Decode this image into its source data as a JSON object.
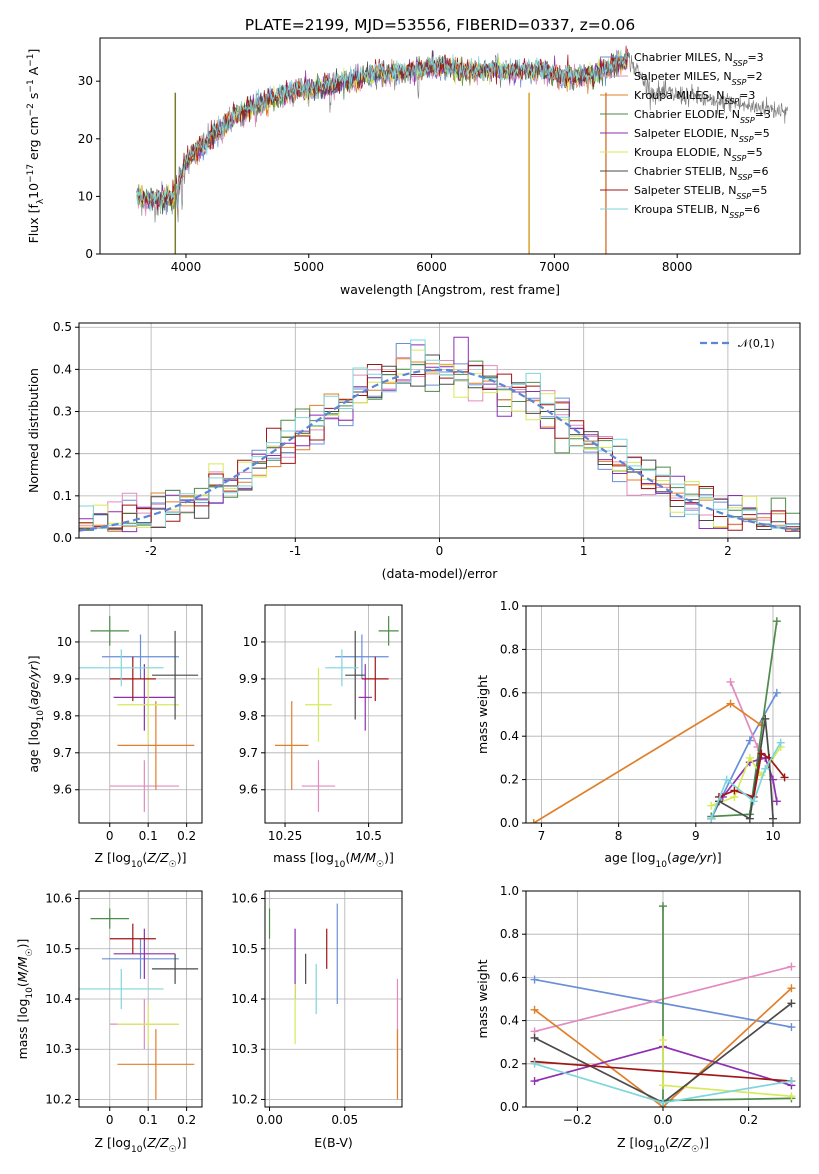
{
  "figure_title": "PLATE=2199, MJD=53556, FIBERID=0337, z=0.06",
  "colors": {
    "chabrier_miles": "#6a8fd8",
    "salpeter_miles": "#e38ac0",
    "kroupa_miles": "#e07f2a",
    "chabrier_elodie": "#4e8a4a",
    "salpeter_elodie": "#8e2fb0",
    "kroupa_elodie": "#d7ea5a",
    "chabrier_stelib": "#4a4a4a",
    "salpeter_stelib": "#a01515",
    "kroupa_stelib": "#7ed6dc"
  },
  "chart_data": [
    {
      "id": "spectrum",
      "type": "line",
      "title": "PLATE=2199, MJD=53556, FIBERID=0337, z=0.06",
      "xlabel": "wavelength [Angstrom, rest frame]",
      "ylabel": "Flux [f_λ 10^-17 erg cm^-2 s^-1 A^-1]",
      "xlim": [
        3300,
        9000
      ],
      "ylim": [
        0,
        37.5
      ],
      "xticks": [
        4000,
        5000,
        6000,
        7000,
        8000
      ],
      "yticks": [
        0,
        10,
        20,
        30
      ],
      "grid": false,
      "legend_position": "right",
      "series": [
        {
          "name": "Chabrier MILES, N_SSP=3",
          "legend_text": "Chabrier MILES, N",
          "legend_sub": "SSP",
          "legend_tail": "=3",
          "color": "#6a8fd8"
        },
        {
          "name": "Salpeter MILES, N_SSP=2",
          "legend_text": "Salpeter MILES, N",
          "legend_sub": "SSP",
          "legend_tail": "=2",
          "color": "#e38ac0"
        },
        {
          "name": "Kroupa MILES, N_SSP=3",
          "legend_text": "Kroupa MILES, N",
          "legend_sub": "SSP",
          "legend_tail": "=3",
          "color": "#e07f2a"
        },
        {
          "name": "Chabrier ELODIE, N_SSP=3",
          "legend_text": "Chabrier ELODIE, N",
          "legend_sub": "SSP",
          "legend_tail": "=3",
          "color": "#4e8a4a"
        },
        {
          "name": "Salpeter ELODIE, N_SSP=5",
          "legend_text": "Salpeter ELODIE, N",
          "legend_sub": "SSP",
          "legend_tail": "=5",
          "color": "#8e2fb0"
        },
        {
          "name": "Kroupa ELODIE, N_SSP=5",
          "legend_text": "Kroupa ELODIE, N",
          "legend_sub": "SSP",
          "legend_tail": "=5",
          "color": "#d7ea5a"
        },
        {
          "name": "Chabrier STELIB, N_SSP=6",
          "legend_text": "Chabrier STELIB, N",
          "legend_sub": "SSP",
          "legend_tail": "=6",
          "color": "#4a4a4a"
        },
        {
          "name": "Salpeter STELIB, N_SSP=5",
          "legend_text": "Salpeter STELIB, N",
          "legend_sub": "SSP",
          "legend_tail": "=5",
          "color": "#a01515"
        },
        {
          "name": "Kroupa STELIB, N_SSP=6",
          "legend_text": "Kroupa STELIB, N",
          "legend_sub": "SSP",
          "legend_tail": "=6",
          "color": "#7ed6dc"
        }
      ],
      "continuum": {
        "x": [
          3600,
          3700,
          3800,
          3900,
          4000,
          4100,
          4200,
          4300,
          4400,
          4500,
          4700,
          4900,
          5100,
          5300,
          5500,
          5700,
          5900,
          6100,
          6300,
          6500,
          6700,
          6900,
          7100,
          7300,
          7500,
          7600
        ],
        "y": [
          10,
          9.5,
          9.5,
          10,
          16,
          18,
          20,
          22,
          24,
          25,
          27,
          28.5,
          29,
          30,
          31,
          31.5,
          32,
          32.5,
          31.5,
          32,
          31.5,
          32,
          30.5,
          31,
          33,
          34
        ]
      },
      "observed_extension": {
        "x": [
          7600,
          7700,
          7800,
          7900,
          8000,
          8100,
          8200,
          8300,
          8400,
          8500,
          8600,
          8700,
          8800,
          8900
        ],
        "y": [
          34,
          31,
          28,
          28,
          27.5,
          27.5,
          27,
          26,
          26.5,
          26,
          25.5,
          25.5,
          25,
          25.3
        ]
      }
    },
    {
      "id": "residuals",
      "type": "line",
      "xlabel": "(data-model)/error",
      "ylabel": "Normed distribution",
      "xlim": [
        -2.5,
        2.5
      ],
      "ylim": [
        0,
        0.51
      ],
      "xticks": [
        -2,
        -1,
        0,
        1,
        2
      ],
      "yticks": [
        0.0,
        0.1,
        0.2,
        0.3,
        0.4,
        0.5
      ],
      "grid": true,
      "legend_position": "upper right",
      "reference": {
        "name": "𝒩(0,1)",
        "mean": 0,
        "sigma": 1,
        "color": "#5b86d6"
      },
      "histogram": {
        "bins_from": -2.5,
        "bins_to": 2.5,
        "bin_width": 0.1,
        "model_count": 9
      }
    },
    {
      "id": "age_vs_Z",
      "type": "scatter",
      "xlabel": "Z [log10(Z/Z☉)]",
      "ylabel": "age [log10(age/yr)]",
      "xlim": [
        -0.08,
        0.24
      ],
      "ylim": [
        9.51,
        10.1
      ],
      "xticks": [
        0.0,
        0.1,
        0.2
      ],
      "yticks": [
        9.6,
        9.7,
        9.8,
        9.9,
        10.0
      ],
      "grid": true,
      "points": [
        {
          "model": "Chabrier MILES",
          "x": 0.08,
          "xerr": 0.1,
          "y": 9.96,
          "yerr": 0.06
        },
        {
          "model": "Salpeter MILES",
          "x": 0.09,
          "xerr": 0.09,
          "y": 9.61,
          "yerr": 0.07
        },
        {
          "model": "Kroupa MILES",
          "x": 0.12,
          "xerr": 0.1,
          "y": 9.72,
          "yerr": 0.12
        },
        {
          "model": "Chabrier ELODIE",
          "x": 0.0,
          "xerr": 0.05,
          "y": 10.03,
          "yerr": 0.04
        },
        {
          "model": "Salpeter ELODIE",
          "x": 0.09,
          "xerr": 0.08,
          "y": 9.85,
          "yerr": 0.09
        },
        {
          "model": "Kroupa ELODIE",
          "x": 0.1,
          "xerr": 0.08,
          "y": 9.83,
          "yerr": 0.1
        },
        {
          "model": "Chabrier STELIB",
          "x": 0.17,
          "xerr": 0.06,
          "y": 9.91,
          "yerr": 0.12
        },
        {
          "model": "Salpeter STELIB",
          "x": 0.06,
          "xerr": 0.06,
          "y": 9.9,
          "yerr": 0.06
        },
        {
          "model": "Kroupa STELIB",
          "x": 0.03,
          "xerr": 0.11,
          "y": 9.93,
          "yerr": 0.05
        }
      ]
    },
    {
      "id": "age_vs_mass",
      "type": "scatter",
      "xlabel": "mass [log10(M/M☉)]",
      "xlim": [
        10.19,
        10.6
      ],
      "ylim": [
        9.51,
        10.1
      ],
      "xticks": [
        10.25,
        10.5
      ],
      "yticks": [
        9.6,
        9.7,
        9.8,
        9.9,
        10.0
      ],
      "grid": true,
      "points": [
        {
          "model": "Chabrier MILES",
          "x": 10.48,
          "xerr": 0.08,
          "y": 9.96,
          "yerr": 0.06
        },
        {
          "model": "Salpeter MILES",
          "x": 10.35,
          "xerr": 0.05,
          "y": 9.61,
          "yerr": 0.07
        },
        {
          "model": "Kroupa MILES",
          "x": 10.27,
          "xerr": 0.05,
          "y": 9.72,
          "yerr": 0.12
        },
        {
          "model": "Chabrier ELODIE",
          "x": 10.56,
          "xerr": 0.03,
          "y": 10.03,
          "yerr": 0.04
        },
        {
          "model": "Salpeter ELODIE",
          "x": 10.49,
          "xerr": 0.02,
          "y": 9.85,
          "yerr": 0.09
        },
        {
          "model": "Kroupa ELODIE",
          "x": 10.35,
          "xerr": 0.04,
          "y": 9.83,
          "yerr": 0.1
        },
        {
          "model": "Chabrier STELIB",
          "x": 10.46,
          "xerr": 0.03,
          "y": 9.91,
          "yerr": 0.12
        },
        {
          "model": "Salpeter STELIB",
          "x": 10.52,
          "xerr": 0.04,
          "y": 9.9,
          "yerr": 0.06
        },
        {
          "model": "Kroupa STELIB",
          "x": 10.42,
          "xerr": 0.05,
          "y": 9.93,
          "yerr": 0.05
        }
      ]
    },
    {
      "id": "weight_vs_age",
      "type": "line",
      "xlabel": "age [log10(age/yr)]",
      "ylabel": "mass weight",
      "xlim": [
        6.8,
        10.35
      ],
      "ylim": [
        0,
        1.0
      ],
      "xticks": [
        7,
        8,
        9,
        10
      ],
      "yticks": [
        0.0,
        0.2,
        0.4,
        0.6,
        0.8,
        1.0
      ],
      "grid": true,
      "series": [
        {
          "model": "Chabrier MILES",
          "x": [
            9.2,
            9.7,
            10.05
          ],
          "y": [
            0.02,
            0.38,
            0.6
          ]
        },
        {
          "model": "Salpeter MILES",
          "x": [
            9.45,
            9.8
          ],
          "y": [
            0.65,
            0.35
          ]
        },
        {
          "model": "Kroupa MILES",
          "x": [
            6.9,
            9.45,
            9.85
          ],
          "y": [
            0.0,
            0.55,
            0.45
          ]
        },
        {
          "model": "Chabrier ELODIE",
          "x": [
            9.2,
            9.7,
            10.05
          ],
          "y": [
            0.03,
            0.04,
            0.93
          ]
        },
        {
          "model": "Salpeter ELODIE",
          "x": [
            9.35,
            9.7,
            9.9,
            10.0,
            10.05
          ],
          "y": [
            0.12,
            0.28,
            0.3,
            0.2,
            0.1
          ]
        },
        {
          "model": "Kroupa ELODIE",
          "x": [
            9.2,
            9.5,
            9.7,
            9.85,
            10.1
          ],
          "y": [
            0.08,
            0.12,
            0.3,
            0.22,
            0.35
          ]
        },
        {
          "model": "Chabrier STELIB",
          "x": [
            9.2,
            9.3,
            9.7,
            9.9,
            9.95,
            10.0
          ],
          "y": [
            0.02,
            0.1,
            0.02,
            0.48,
            0.3,
            0.02
          ]
        },
        {
          "model": "Salpeter STELIB",
          "x": [
            9.3,
            9.5,
            9.75,
            9.85,
            9.95,
            10.15
          ],
          "y": [
            0.12,
            0.15,
            0.12,
            0.32,
            0.3,
            0.21
          ]
        },
        {
          "model": "Kroupa STELIB",
          "x": [
            9.2,
            9.4,
            9.75,
            9.9,
            10.1
          ],
          "y": [
            0.02,
            0.2,
            0.1,
            0.25,
            0.37
          ]
        }
      ]
    },
    {
      "id": "mass_vs_Z",
      "type": "scatter",
      "xlabel": "Z [log10(Z/Z☉)]",
      "ylabel": "mass [log10(M/M☉)]",
      "xlim": [
        -0.08,
        0.24
      ],
      "ylim": [
        10.185,
        10.615
      ],
      "xticks": [
        0.0,
        0.1,
        0.2
      ],
      "yticks": [
        10.2,
        10.3,
        10.4,
        10.5,
        10.6
      ],
      "grid": true,
      "points": [
        {
          "model": "Chabrier MILES",
          "x": 0.08,
          "xerr": 0.1,
          "y": 10.48,
          "yerr": 0.04
        },
        {
          "model": "Salpeter MILES",
          "x": 0.09,
          "xerr": 0.09,
          "y": 10.35,
          "yerr": 0.05
        },
        {
          "model": "Kroupa MILES",
          "x": 0.12,
          "xerr": 0.1,
          "y": 10.27,
          "yerr": 0.07
        },
        {
          "model": "Chabrier ELODIE",
          "x": 0.0,
          "xerr": 0.05,
          "y": 10.56,
          "yerr": 0.02
        },
        {
          "model": "Salpeter ELODIE",
          "x": 0.09,
          "xerr": 0.08,
          "y": 10.49,
          "yerr": 0.05
        },
        {
          "model": "Kroupa ELODIE",
          "x": 0.1,
          "xerr": 0.08,
          "y": 10.35,
          "yerr": 0.04
        },
        {
          "model": "Chabrier STELIB",
          "x": 0.17,
          "xerr": 0.06,
          "y": 10.46,
          "yerr": 0.03
        },
        {
          "model": "Salpeter STELIB",
          "x": 0.06,
          "xerr": 0.06,
          "y": 10.52,
          "yerr": 0.03
        },
        {
          "model": "Kroupa STELIB",
          "x": 0.03,
          "xerr": 0.11,
          "y": 10.42,
          "yerr": 0.04
        }
      ]
    },
    {
      "id": "mass_vs_ebv",
      "type": "scatter",
      "xlabel": "E(B-V)",
      "xlim": [
        -0.003,
        0.088
      ],
      "ylim": [
        10.185,
        10.615
      ],
      "xticks": [
        0.0,
        0.05
      ],
      "xtick_labels": [
        "0.00",
        "0.05"
      ],
      "yticks": [
        10.2,
        10.3,
        10.4,
        10.5,
        10.6
      ],
      "grid": true,
      "points": [
        {
          "model": "Chabrier MILES",
          "x": 0.045,
          "y": 10.49,
          "yerr": 0.1
        },
        {
          "model": "Salpeter MILES",
          "x": 0.085,
          "y": 10.36,
          "yerr": 0.08
        },
        {
          "model": "Kroupa MILES",
          "x": 0.085,
          "y": 10.27,
          "yerr": 0.07
        },
        {
          "model": "Chabrier ELODIE",
          "x": 0.0,
          "y": 10.55,
          "yerr": 0.03
        },
        {
          "model": "Salpeter ELODIE",
          "x": 0.017,
          "y": 10.47,
          "yerr": 0.07
        },
        {
          "model": "Kroupa ELODIE",
          "x": 0.017,
          "y": 10.37,
          "yerr": 0.06
        },
        {
          "model": "Chabrier STELIB",
          "x": 0.024,
          "y": 10.46,
          "yerr": 0.03
        },
        {
          "model": "Salpeter STELIB",
          "x": 0.038,
          "y": 10.5,
          "yerr": 0.04
        },
        {
          "model": "Kroupa STELIB",
          "x": 0.031,
          "y": 10.42,
          "yerr": 0.05
        }
      ]
    },
    {
      "id": "weight_vs_Z",
      "type": "line",
      "xlabel": "Z [log10(Z/Z☉)]",
      "ylabel": "mass weight",
      "xlim": [
        -0.32,
        0.32
      ],
      "ylim": [
        0,
        1.0
      ],
      "xticks": [
        -0.2,
        0.0,
        0.2
      ],
      "xtick_labels": [
        "−0.2",
        "0.0",
        "0.2"
      ],
      "yticks": [
        0.0,
        0.2,
        0.4,
        0.6,
        0.8,
        1.0
      ],
      "grid": true,
      "series": [
        {
          "model": "Chabrier MILES",
          "x": [
            -0.3,
            0.3
          ],
          "y": [
            0.59,
            0.37
          ]
        },
        {
          "model": "Salpeter MILES",
          "x": [
            -0.3,
            0.3
          ],
          "y": [
            0.35,
            0.65
          ]
        },
        {
          "model": "Kroupa MILES",
          "x": [
            -0.3,
            0.0,
            0.3
          ],
          "y": [
            0.45,
            0.0,
            0.55
          ]
        },
        {
          "model": "Chabrier ELODIE",
          "x": [
            0.0,
            0.0,
            0.3
          ],
          "y": [
            0.93,
            0.03,
            0.04
          ]
        },
        {
          "model": "Salpeter ELODIE",
          "x": [
            -0.3,
            0.0,
            0.3
          ],
          "y": [
            0.12,
            0.28,
            0.1
          ]
        },
        {
          "model": "Kroupa ELODIE",
          "x": [
            0.0,
            0.0,
            0.3
          ],
          "y": [
            0.31,
            0.1,
            0.05
          ]
        },
        {
          "model": "Chabrier STELIB",
          "x": [
            -0.3,
            0.0,
            0.3
          ],
          "y": [
            0.32,
            0.02,
            0.48
          ]
        },
        {
          "model": "Salpeter STELIB",
          "x": [
            -0.3,
            0.3
          ],
          "y": [
            0.21,
            0.12
          ]
        },
        {
          "model": "Kroupa STELIB",
          "x": [
            -0.3,
            0.0,
            0.3
          ],
          "y": [
            0.2,
            0.02,
            0.12
          ]
        }
      ]
    }
  ]
}
